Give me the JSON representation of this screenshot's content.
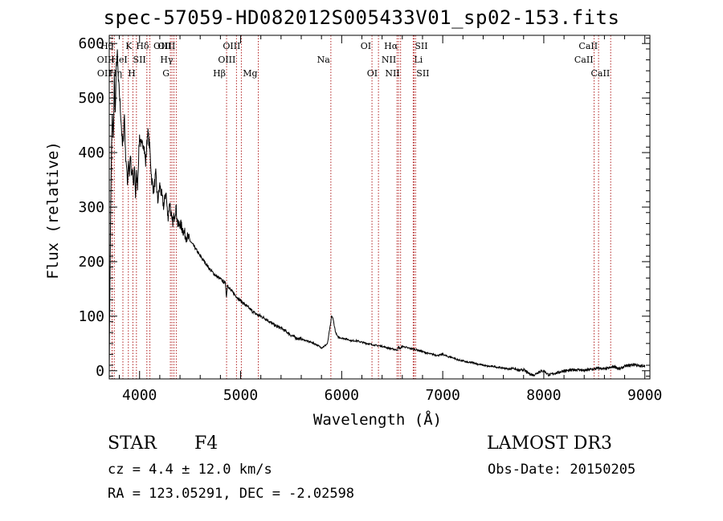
{
  "title": "spec-57059-HD082012S005433V01_sp02-153.fits",
  "info": {
    "class_label": "STAR",
    "subclass": "F4",
    "survey": "LAMOST DR3",
    "cz": "cz = 4.4 ± 12.0 km/s",
    "obs_date": "Obs-Date: 20150205",
    "coords": "RA = 123.05291, DEC =  -2.02598"
  },
  "chart_data": {
    "type": "line",
    "title": "spec-57059-HD082012S005433V01_sp02-153.fits",
    "xlabel": "Wavelength (Å)",
    "ylabel": "Flux (relative)",
    "xlim": [
      3700,
      9050
    ],
    "ylim": [
      -15,
      615
    ],
    "xticks": [
      4000,
      5000,
      6000,
      7000,
      8000,
      9000
    ],
    "yticks": [
      0,
      100,
      200,
      300,
      400,
      500,
      600
    ],
    "series": [
      {
        "name": "flux",
        "x": [
          3700,
          3710,
          3720,
          3730,
          3740,
          3750,
          3760,
          3770,
          3780,
          3790,
          3800,
          3810,
          3820,
          3830,
          3840,
          3850,
          3860,
          3870,
          3880,
          3890,
          3900,
          3910,
          3920,
          3930,
          3940,
          3950,
          3960,
          3970,
          3980,
          3990,
          4000,
          4020,
          4040,
          4060,
          4080,
          4100,
          4120,
          4140,
          4160,
          4180,
          4200,
          4220,
          4240,
          4260,
          4280,
          4300,
          4320,
          4340,
          4360,
          4380,
          4400,
          4450,
          4500,
          4550,
          4600,
          4650,
          4700,
          4750,
          4800,
          4850,
          4860,
          4870,
          4900,
          4950,
          5000,
          5050,
          5100,
          5150,
          5200,
          5250,
          5300,
          5350,
          5400,
          5450,
          5500,
          5550,
          5600,
          5650,
          5700,
          5750,
          5800,
          5830,
          5860,
          5880,
          5890,
          5900,
          5910,
          5920,
          5940,
          5960,
          6000,
          6050,
          6100,
          6150,
          6200,
          6250,
          6300,
          6350,
          6400,
          6450,
          6500,
          6550,
          6563,
          6580,
          6600,
          6650,
          6700,
          6750,
          6800,
          6850,
          6900,
          6950,
          7000,
          7050,
          7100,
          7150,
          7200,
          7250,
          7300,
          7350,
          7400,
          7450,
          7500,
          7550,
          7600,
          7650,
          7700,
          7750,
          7800,
          7850,
          7900,
          7950,
          8000,
          8050,
          8100,
          8150,
          8200,
          8250,
          8300,
          8350,
          8400,
          8450,
          8500,
          8550,
          8600,
          8650,
          8700,
          8750,
          8800,
          8850,
          8900,
          8950,
          9000
        ],
        "y": [
          0,
          230,
          380,
          470,
          420,
          540,
          470,
          560,
          580,
          530,
          510,
          480,
          450,
          410,
          430,
          470,
          400,
          380,
          340,
          390,
          360,
          400,
          350,
          370,
          330,
          380,
          320,
          360,
          340,
          390,
          430,
          410,
          420,
          380,
          440,
          410,
          350,
          330,
          360,
          310,
          340,
          320,
          300,
          330,
          280,
          310,
          270,
          280,
          300,
          265,
          270,
          250,
          238,
          225,
          210,
          198,
          185,
          175,
          168,
          160,
          135,
          158,
          148,
          138,
          128,
          120,
          112,
          104,
          100,
          95,
          88,
          82,
          78,
          72,
          65,
          60,
          58,
          55,
          52,
          48,
          42,
          45,
          50,
          75,
          85,
          100,
          98,
          90,
          70,
          62,
          60,
          58,
          55,
          55,
          52,
          50,
          48,
          46,
          45,
          42,
          40,
          38,
          44,
          40,
          45,
          42,
          40,
          38,
          35,
          32,
          30,
          28,
          30,
          26,
          24,
          20,
          18,
          15,
          15,
          12,
          10,
          8,
          8,
          6,
          5,
          3,
          5,
          0,
          2,
          -5,
          -8,
          -2,
          0,
          -8,
          -5,
          -3,
          0,
          0,
          2,
          2,
          0,
          2,
          3,
          5,
          3,
          5,
          8,
          3,
          8,
          10,
          12,
          8,
          10
        ]
      }
    ],
    "lines": [
      {
        "label": "OII",
        "w": 3727,
        "row": 1,
        "side": "left"
      },
      {
        "label": "OII",
        "w": 3729,
        "row": 2,
        "side": "left"
      },
      {
        "label": "Hθ",
        "w": 3750,
        "row": 0,
        "side": "left"
      },
      {
        "label": "Hη",
        "w": 3835,
        "row": 2,
        "side": "left"
      },
      {
        "label": "HeI",
        "w": 3889,
        "row": 1,
        "side": "left"
      },
      {
        "label": "K",
        "w": 3934,
        "row": 0,
        "side": "left"
      },
      {
        "label": "H",
        "w": 3969,
        "row": 2,
        "side": "left"
      },
      {
        "label": "SII",
        "w": 4072,
        "row": 1,
        "side": "left"
      },
      {
        "label": "Hδ",
        "w": 4102,
        "row": 0,
        "side": "left"
      },
      {
        "label": "G",
        "w": 4305,
        "row": 2,
        "side": "left"
      },
      {
        "label": "OIII",
        "w": 4321,
        "row": 0,
        "side": "left"
      },
      {
        "label": "Hγ",
        "w": 4340,
        "row": 1,
        "side": "left"
      },
      {
        "label": "OIII",
        "w": 4363,
        "row": 0,
        "side": "left"
      },
      {
        "label": "Hβ",
        "w": 4861,
        "row": 2,
        "side": "left"
      },
      {
        "label": "OIII",
        "w": 4959,
        "row": 1,
        "side": "left"
      },
      {
        "label": "OIII",
        "w": 5007,
        "row": 0,
        "side": "left"
      },
      {
        "label": "Mg",
        "w": 5175,
        "row": 2,
        "side": "left"
      },
      {
        "label": "Na",
        "w": 5893,
        "row": 1,
        "side": "left"
      },
      {
        "label": "OI",
        "w": 6300,
        "row": 0,
        "side": "left"
      },
      {
        "label": "OI",
        "w": 6364,
        "row": 2,
        "side": "left"
      },
      {
        "label": "NII",
        "w": 6548,
        "row": 1,
        "side": "left"
      },
      {
        "label": "Hα",
        "w": 6563,
        "row": 0,
        "side": "left"
      },
      {
        "label": "NII",
        "w": 6583,
        "row": 2,
        "side": "left"
      },
      {
        "label": "Li",
        "w": 6708,
        "row": 1,
        "side": "right"
      },
      {
        "label": "SII",
        "w": 6716,
        "row": 0,
        "side": "right"
      },
      {
        "label": "SII",
        "w": 6731,
        "row": 2,
        "side": "right"
      },
      {
        "label": "CaII",
        "w": 8498,
        "row": 1,
        "side": "left"
      },
      {
        "label": "CaII",
        "w": 8542,
        "row": 0,
        "side": "left"
      },
      {
        "label": "CaII",
        "w": 8662,
        "row": 2,
        "side": "left"
      }
    ]
  }
}
